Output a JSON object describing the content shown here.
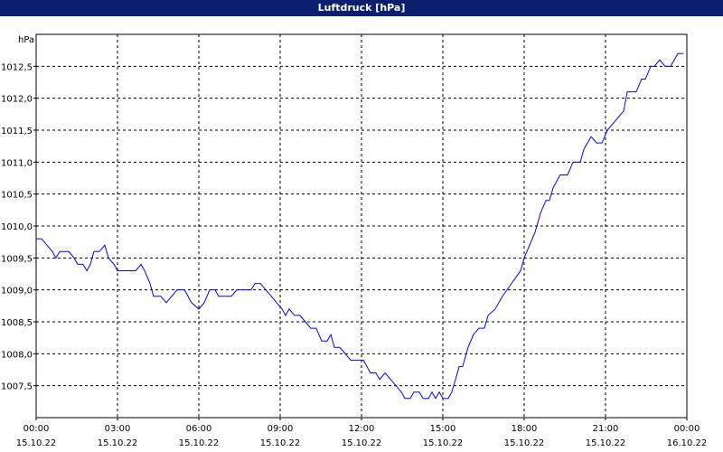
{
  "chart_data": {
    "type": "line",
    "title": "Luftdruck [hPa]",
    "y_unit": "hPa",
    "color": "#0000ff",
    "grid": true,
    "xlim": [
      0,
      24
    ],
    "ylim": [
      1007,
      1013
    ],
    "xticks": [
      {
        "value": 0,
        "label": "00:00",
        "date": "15.10.22"
      },
      {
        "value": 3,
        "label": "03:00",
        "date": "15.10.22"
      },
      {
        "value": 6,
        "label": "06:00",
        "date": "15.10.22"
      },
      {
        "value": 9,
        "label": "09:00",
        "date": "15.10.22"
      },
      {
        "value": 12,
        "label": "12:00",
        "date": "15.10.22"
      },
      {
        "value": 15,
        "label": "15:00",
        "date": "15.10.22"
      },
      {
        "value": 18,
        "label": "18:00",
        "date": "15.10.22"
      },
      {
        "value": 21,
        "label": "21:00",
        "date": "15.10.22"
      },
      {
        "value": 24,
        "label": "00:00",
        "date": "16.10.22"
      }
    ],
    "yticks": [
      {
        "value": 1007.5,
        "label": "1007,5"
      },
      {
        "value": 1008,
        "label": "1008,0"
      },
      {
        "value": 1008.5,
        "label": "1008,5"
      },
      {
        "value": 1009,
        "label": "1009,0"
      },
      {
        "value": 1009.5,
        "label": "1009,5"
      },
      {
        "value": 1010,
        "label": "1010,0"
      },
      {
        "value": 1010.5,
        "label": "1010,5"
      },
      {
        "value": 1011,
        "label": "1011,0"
      },
      {
        "value": 1011.5,
        "label": "1011,5"
      },
      {
        "value": 1012,
        "label": "1012,0"
      },
      {
        "value": 1012.5,
        "label": "1012,5"
      }
    ],
    "x": [
      0,
      0.2,
      0.4,
      0.6,
      0.73,
      0.87,
      1.2,
      1.4,
      1.53,
      1.73,
      1.87,
      2,
      2.13,
      2.33,
      2.53,
      2.67,
      2.87,
      3,
      3.67,
      3.87,
      4,
      4.2,
      4.33,
      4.6,
      4.8,
      5,
      5.2,
      5.47,
      5.73,
      6,
      6.2,
      6.4,
      6.6,
      6.73,
      7.2,
      7.4,
      7.93,
      8.07,
      8.27,
      8.47,
      8.67,
      8.87,
      9.07,
      9.2,
      9.33,
      9.53,
      9.73,
      9.93,
      10.13,
      10.33,
      10.53,
      10.73,
      10.87,
      11,
      11.2,
      11.4,
      11.6,
      12.07,
      12.33,
      12.53,
      12.67,
      12.87,
      13.07,
      13.27,
      13.47,
      13.6,
      13.8,
      13.93,
      14.13,
      14.27,
      14.47,
      14.6,
      14.73,
      14.87,
      15,
      15.2,
      15.33,
      15.47,
      15.6,
      15.73,
      15.93,
      16.13,
      16.33,
      16.53,
      16.67,
      16.93,
      17.2,
      17.53,
      17.87,
      18,
      18.2,
      18.4,
      18.6,
      18.8,
      18.93,
      19.07,
      19.2,
      19.33,
      19.6,
      19.8,
      20.07,
      20.2,
      20.47,
      20.67,
      20.87,
      21.07,
      21.27,
      21.47,
      21.67,
      21.8,
      22.13,
      22.33,
      22.47,
      22.67,
      22.8,
      23,
      23.2,
      23.4,
      23.67,
      23.87
    ],
    "values": [
      1009.8,
      1009.8,
      1009.7,
      1009.6,
      1009.5,
      1009.6,
      1009.6,
      1009.5,
      1009.4,
      1009.4,
      1009.3,
      1009.4,
      1009.6,
      1009.6,
      1009.7,
      1009.5,
      1009.4,
      1009.3,
      1009.3,
      1009.4,
      1009.3,
      1009.1,
      1008.9,
      1008.9,
      1008.8,
      1008.9,
      1009.0,
      1009.0,
      1008.8,
      1008.7,
      1008.8,
      1009.0,
      1009.0,
      1008.9,
      1008.9,
      1009.0,
      1009.0,
      1009.1,
      1009.1,
      1009.0,
      1008.9,
      1008.8,
      1008.7,
      1008.6,
      1008.7,
      1008.6,
      1008.6,
      1008.5,
      1008.4,
      1008.4,
      1008.2,
      1008.2,
      1008.3,
      1008.1,
      1008.1,
      1008.0,
      1007.9,
      1007.9,
      1007.7,
      1007.7,
      1007.6,
      1007.7,
      1007.6,
      1007.5,
      1007.4,
      1007.3,
      1007.3,
      1007.4,
      1007.4,
      1007.3,
      1007.3,
      1007.4,
      1007.3,
      1007.4,
      1007.3,
      1007.3,
      1007.4,
      1007.6,
      1007.8,
      1007.8,
      1008.1,
      1008.3,
      1008.4,
      1008.4,
      1008.6,
      1008.7,
      1008.9,
      1009.1,
      1009.3,
      1009.5,
      1009.7,
      1009.9,
      1010.2,
      1010.4,
      1010.4,
      1010.6,
      1010.7,
      1010.8,
      1010.8,
      1011.0,
      1011.0,
      1011.2,
      1011.4,
      1011.3,
      1011.3,
      1011.5,
      1011.6,
      1011.7,
      1011.8,
      1012.1,
      1012.1,
      1012.3,
      1012.3,
      1012.5,
      1012.5,
      1012.6,
      1012.5,
      1012.5,
      1012.7,
      1012.7
    ]
  }
}
